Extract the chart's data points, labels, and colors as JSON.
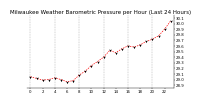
{
  "title": "Milwaukee Weather Barometric Pressure per Hour (Last 24 Hours)",
  "background_color": "#ffffff",
  "grid_color": "#888888",
  "line_color": "#ff0000",
  "marker_color": "#000000",
  "hours": [
    0,
    1,
    2,
    3,
    4,
    5,
    6,
    7,
    8,
    9,
    10,
    11,
    12,
    13,
    14,
    15,
    16,
    17,
    18,
    19,
    20,
    21,
    22,
    23
  ],
  "pressure": [
    29.05,
    29.02,
    28.99,
    29.0,
    29.03,
    29.0,
    28.96,
    28.98,
    29.08,
    29.15,
    29.25,
    29.32,
    29.4,
    29.52,
    29.48,
    29.55,
    29.6,
    29.58,
    29.62,
    29.68,
    29.72,
    29.78,
    29.9,
    30.05
  ],
  "ylim": [
    28.85,
    30.15
  ],
  "yticks": [
    28.9,
    29.0,
    29.1,
    29.2,
    29.3,
    29.4,
    29.5,
    29.6,
    29.7,
    29.8,
    29.9,
    30.0,
    30.1
  ],
  "xlim": [
    -0.5,
    23.5
  ],
  "xtick_positions": [
    0,
    2,
    4,
    6,
    8,
    10,
    12,
    14,
    16,
    18,
    20,
    22
  ],
  "vgrid_positions": [
    0,
    4,
    8,
    12,
    16,
    20
  ],
  "title_fontsize": 4.0,
  "tick_fontsize": 2.8,
  "linewidth": 0.5,
  "markersize": 2.0,
  "marker_linewidth": 0.5
}
